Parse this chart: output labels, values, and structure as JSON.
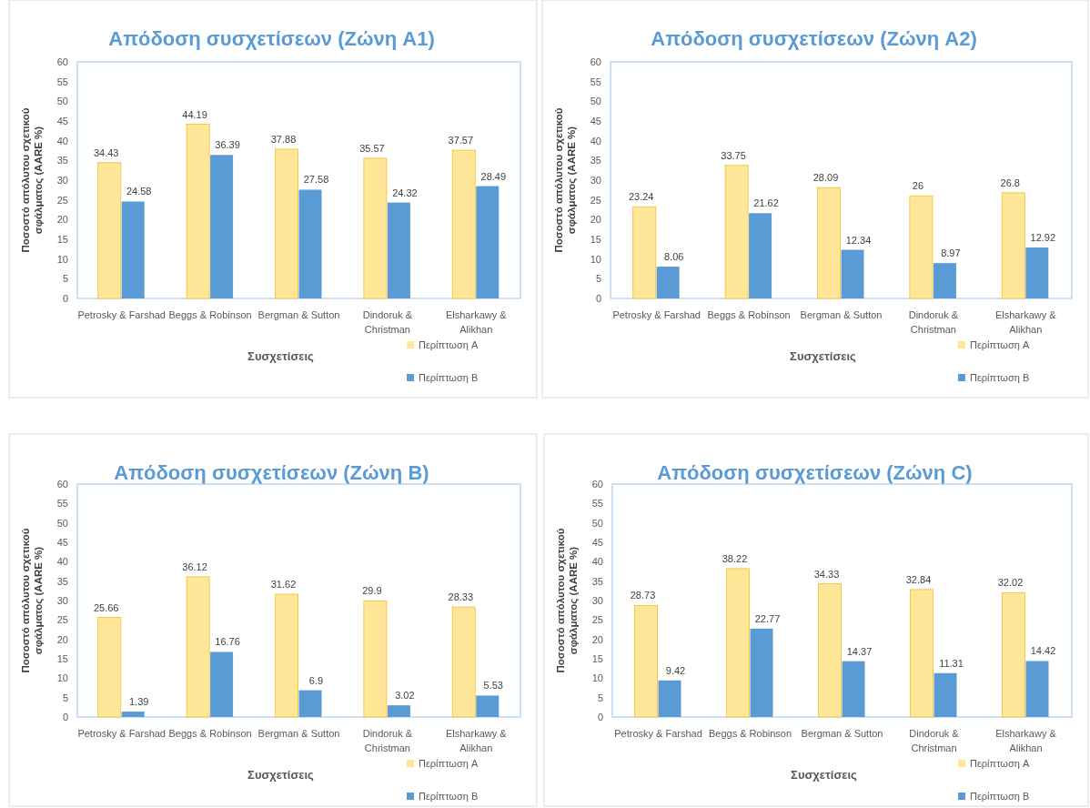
{
  "chart_data": [
    {
      "type": "bar",
      "title": "Απόδοση συσχετίσεων (Ζώνη A1)",
      "xlabel": "Συσχετίσεις",
      "ylabel": "Ποσοστό απόλυτου σχετικού σφάλματος (AARE %)",
      "categories": [
        "Petrosky & Farshad",
        "Beggs & Robinson",
        "Bergman & Sutton",
        "Dindoruk & Christman",
        "Elsharkawy & Alikhan"
      ],
      "series": [
        {
          "name": "Περίπτωση A",
          "color": "#ffe699",
          "values": [
            34.43,
            44.19,
            37.88,
            35.57,
            37.57
          ]
        },
        {
          "name": "Περίπτωση B",
          "color": "#5b9bd5",
          "values": [
            24.58,
            36.39,
            27.58,
            24.32,
            28.49
          ]
        }
      ],
      "ylim": [
        0,
        60
      ],
      "yticks": [
        0,
        5,
        10,
        15,
        20,
        25,
        30,
        35,
        40,
        45,
        50,
        55,
        60
      ],
      "data_labels": true,
      "legend": "bottom right"
    },
    {
      "type": "bar",
      "title": "Απόδοση συσχετίσεων (Ζώνη A2)",
      "xlabel": "Συσχετίσεις",
      "ylabel": "Ποσοστό απόλυτου σχετικού σφάλματος (AARE %)",
      "categories": [
        "Petrosky & Farshad",
        "Beggs & Robinson",
        "Bergman & Sutton",
        "Dindoruk & Christman",
        "Elsharkawy & Alikhan"
      ],
      "series": [
        {
          "name": "Περίπτωση A",
          "color": "#ffe699",
          "values": [
            23.24,
            33.75,
            28.09,
            26,
            26.8
          ]
        },
        {
          "name": "Περίπτωση B",
          "color": "#5b9bd5",
          "values": [
            8.06,
            21.62,
            12.34,
            8.97,
            12.92
          ]
        }
      ],
      "ylim": [
        0,
        60
      ],
      "yticks": [
        0,
        5,
        10,
        15,
        20,
        25,
        30,
        35,
        40,
        45,
        50,
        55,
        60
      ],
      "data_labels": true,
      "legend": "bottom right"
    },
    {
      "type": "bar",
      "title": "Απόδοση συσχετίσεων (Ζώνη B)",
      "xlabel": "Συσχετίσεις",
      "ylabel": "Ποσοστό απόλυτου σχετικού σφάλματος (AARE %)",
      "categories": [
        "Petrosky & Farshad",
        "Beggs & Robinson",
        "Bergman & Sutton",
        "Dindoruk & Christman",
        "Elsharkawy & Alikhan"
      ],
      "series": [
        {
          "name": "Περίπτωση A",
          "color": "#ffe699",
          "values": [
            25.66,
            36.12,
            31.62,
            29.9,
            28.33
          ]
        },
        {
          "name": "Περίπτωση B",
          "color": "#5b9bd5",
          "values": [
            1.39,
            16.76,
            6.9,
            3.02,
            5.53
          ]
        }
      ],
      "ylim": [
        0,
        60
      ],
      "yticks": [
        0,
        5,
        10,
        15,
        20,
        25,
        30,
        35,
        40,
        45,
        50,
        55,
        60
      ],
      "data_labels": true,
      "legend": "bottom right"
    },
    {
      "type": "bar",
      "title": "Απόδοση συσχετίσεων (Ζώνη C)",
      "xlabel": "Συσχετίσεις",
      "ylabel": "Ποσοστό απόλυτου σχετικού σφάλματος (AARE %)",
      "categories": [
        "Petrosky & Farshad",
        "Beggs & Robinson",
        "Bergman & Sutton",
        "Dindoruk & Christman",
        "Elsharkawy & Alikhan"
      ],
      "series": [
        {
          "name": "Περίπτωση A",
          "color": "#ffe699",
          "values": [
            28.73,
            38.22,
            34.33,
            32.84,
            32.02
          ]
        },
        {
          "name": "Περίπτωση B",
          "color": "#5b9bd5",
          "values": [
            9.42,
            22.77,
            14.37,
            11.31,
            14.42
          ]
        }
      ],
      "ylim": [
        0,
        60
      ],
      "yticks": [
        0,
        5,
        10,
        15,
        20,
        25,
        30,
        35,
        40,
        45,
        50,
        55,
        60
      ],
      "data_labels": true,
      "legend": "bottom right"
    }
  ]
}
